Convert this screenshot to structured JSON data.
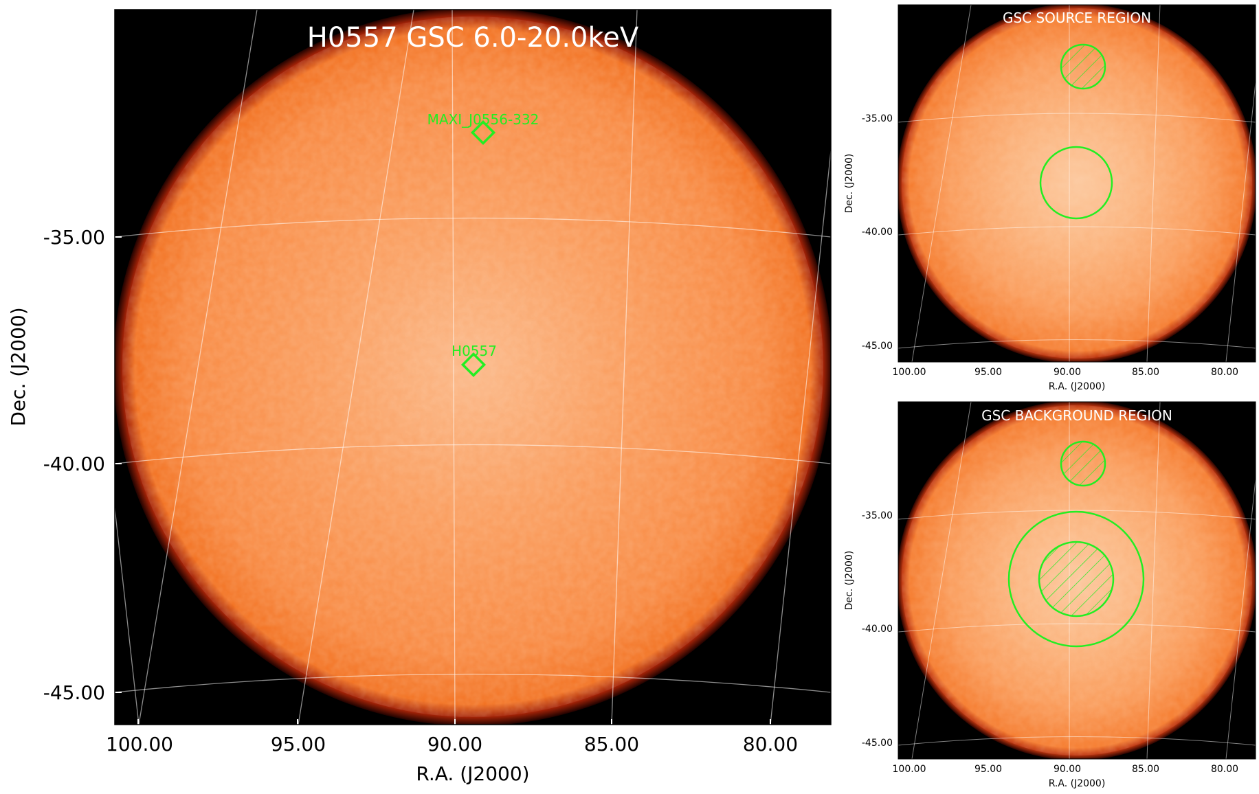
{
  "main_panel": {
    "title": "H0557 GSC 6.0-20.0keV",
    "xlabel": "R.A. (J2000)",
    "ylabel": "Dec. (J2000)",
    "xticks": [
      "100.00",
      "95.00",
      "90.00",
      "85.00",
      "80.00"
    ],
    "yticks": [
      "-35.00",
      "-40.00",
      "-45.00"
    ],
    "markers": [
      {
        "label": "MAXI_J0556-332",
        "shape": "diamond"
      },
      {
        "label": "H0557",
        "shape": "diamond"
      }
    ]
  },
  "source_panel": {
    "title": "GSC SOURCE REGION",
    "xlabel": "R.A. (J2000)",
    "ylabel": "Dec. (J2000)",
    "xticks": [
      "100.00",
      "95.00",
      "90.00",
      "85.00",
      "80.00"
    ],
    "yticks": [
      "-35.00",
      "-40.00",
      "-45.00"
    ]
  },
  "background_panel": {
    "title": "GSC BACKGROUND REGION",
    "xlabel": "R.A. (J2000)",
    "ylabel": "Dec. (J2000)",
    "xticks": [
      "100.00",
      "95.00",
      "90.00",
      "85.00",
      "80.00"
    ],
    "yticks": [
      "-35.00",
      "-40.00",
      "-45.00"
    ]
  },
  "colors": {
    "disk_center": "#fcc79c",
    "disk_mid": "#fa9550",
    "disk_edge": "#f57a2c",
    "rim": "#8a1205",
    "frame_bg": "#000000",
    "region": "#22ee22",
    "grid": "#ffffff"
  }
}
